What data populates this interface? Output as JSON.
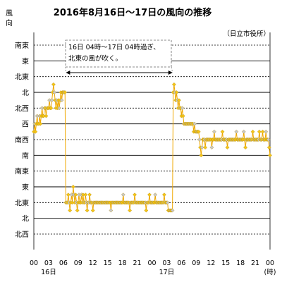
{
  "chart_data": {
    "type": "line",
    "title": "2016年8月16日～17日の風向の推移",
    "subtitle": "（日立市役所）",
    "ylabel": "風\n向",
    "y_categories": [
      "北西",
      "北",
      "北東",
      "東",
      "南東",
      "南",
      "南西",
      "西",
      "北西",
      "北",
      "北東",
      "東",
      "南東"
    ],
    "x_ticks": [
      "00",
      "03",
      "06",
      "09",
      "12",
      "15",
      "18",
      "21",
      "00",
      "03",
      "06",
      "09",
      "12",
      "15",
      "18",
      "21",
      "00"
    ],
    "x_unit": "(時)",
    "day_labels": [
      {
        "tick": "03",
        "label": "16日"
      },
      {
        "tick": "03",
        "label": "17日"
      }
    ],
    "xlim_hours": [
      0,
      48
    ],
    "annotation": {
      "line1": "16日 04時～17日 04時過ぎ、",
      "line2": "北東の風が吹く。"
    },
    "colors": {
      "line": "#f0a800",
      "marker": "#f5c518",
      "marker_edge": "#b08800",
      "marker_alt": "#c8c8c8"
    },
    "series": [
      {
        "points": [
          [
            0.0,
            6.5
          ],
          [
            0.17,
            7
          ],
          [
            0.33,
            6.5
          ],
          [
            0.5,
            7
          ],
          [
            0.67,
            7.5
          ],
          [
            0.83,
            7
          ],
          [
            1.0,
            7
          ],
          [
            1.17,
            7.5
          ],
          [
            1.33,
            7
          ],
          [
            1.5,
            7.5
          ],
          [
            1.67,
            8
          ],
          [
            1.83,
            7.5
          ],
          [
            2.0,
            7.5
          ],
          [
            2.17,
            8
          ],
          [
            2.33,
            8
          ],
          [
            2.5,
            7.5
          ],
          [
            2.67,
            8
          ],
          [
            2.83,
            8
          ],
          [
            3.0,
            8
          ],
          [
            3.17,
            8.5
          ],
          [
            3.33,
            8
          ],
          [
            3.5,
            8
          ],
          [
            3.67,
            8.5
          ],
          [
            3.83,
            9
          ],
          [
            4.0,
            9.5
          ],
          [
            4.17,
            9
          ],
          [
            4.33,
            8.5
          ],
          [
            4.5,
            8
          ],
          [
            4.67,
            8.5
          ],
          [
            4.83,
            8
          ],
          [
            5.0,
            8.5
          ],
          [
            5.17,
            8
          ],
          [
            5.33,
            8.5
          ],
          [
            5.5,
            9
          ],
          [
            5.67,
            8.5
          ],
          [
            5.83,
            9
          ],
          [
            6.0,
            9
          ],
          [
            6.17,
            9
          ],
          [
            6.33,
            9
          ],
          [
            6.5,
            2
          ],
          [
            6.67,
            2
          ],
          [
            6.83,
            2
          ],
          [
            7.0,
            2.5
          ],
          [
            7.17,
            2
          ],
          [
            7.33,
            1.5
          ],
          [
            7.5,
            2
          ],
          [
            7.67,
            2.5
          ],
          [
            7.83,
            2
          ],
          [
            8.0,
            3
          ],
          [
            8.17,
            2.5
          ],
          [
            8.33,
            2
          ],
          [
            8.5,
            2.5
          ],
          [
            8.67,
            2
          ],
          [
            8.83,
            1.5
          ],
          [
            9.0,
            2
          ],
          [
            9.17,
            2.5
          ],
          [
            9.33,
            2
          ],
          [
            9.5,
            2
          ],
          [
            9.67,
            2.5
          ],
          [
            9.83,
            2
          ],
          [
            10.0,
            2.5
          ],
          [
            10.17,
            2
          ],
          [
            10.33,
            2
          ],
          [
            10.5,
            2.5
          ],
          [
            10.67,
            2
          ],
          [
            10.83,
            1.5
          ],
          [
            11.0,
            2
          ],
          [
            11.17,
            2
          ],
          [
            11.33,
            2.5
          ],
          [
            11.5,
            2
          ],
          [
            11.67,
            2
          ],
          [
            11.83,
            2
          ],
          [
            12.0,
            1.5
          ],
          [
            12.17,
            2
          ],
          [
            12.33,
            2
          ],
          [
            12.5,
            2
          ],
          [
            12.67,
            2
          ],
          [
            12.83,
            2
          ],
          [
            13.0,
            2
          ],
          [
            13.17,
            2
          ],
          [
            13.33,
            2
          ],
          [
            13.5,
            2
          ],
          [
            13.67,
            2
          ],
          [
            13.83,
            2
          ],
          [
            14.0,
            2
          ],
          [
            14.17,
            2
          ],
          [
            14.33,
            2
          ],
          [
            14.5,
            2
          ],
          [
            14.67,
            2
          ],
          [
            14.83,
            2
          ],
          [
            15.0,
            2
          ],
          [
            15.17,
            2
          ],
          [
            15.33,
            2
          ],
          [
            15.5,
            2
          ],
          [
            15.67,
            1.5
          ],
          [
            15.83,
            2
          ],
          [
            16.0,
            2
          ],
          [
            16.17,
            2
          ],
          [
            16.33,
            2
          ],
          [
            16.5,
            2
          ],
          [
            16.67,
            2
          ],
          [
            16.83,
            2
          ],
          [
            17.0,
            2
          ],
          [
            17.17,
            2
          ],
          [
            17.33,
            2
          ],
          [
            17.5,
            2
          ],
          [
            17.67,
            2
          ],
          [
            17.83,
            2
          ],
          [
            18.0,
            2
          ],
          [
            18.17,
            2.5
          ],
          [
            18.33,
            2
          ],
          [
            18.5,
            2
          ],
          [
            18.67,
            2
          ],
          [
            18.83,
            2
          ],
          [
            19.0,
            2
          ],
          [
            19.17,
            2
          ],
          [
            19.33,
            2
          ],
          [
            19.5,
            1.5
          ],
          [
            19.67,
            2
          ],
          [
            19.83,
            2
          ],
          [
            20.0,
            2
          ],
          [
            20.17,
            2
          ],
          [
            20.33,
            2
          ],
          [
            20.5,
            2.5
          ],
          [
            20.67,
            2
          ],
          [
            20.83,
            2
          ],
          [
            21.0,
            2
          ],
          [
            21.17,
            2
          ],
          [
            21.33,
            2
          ],
          [
            21.5,
            2
          ],
          [
            21.67,
            2
          ],
          [
            21.83,
            2
          ],
          [
            22.0,
            2
          ],
          [
            22.17,
            2
          ],
          [
            22.33,
            2
          ],
          [
            22.5,
            2
          ],
          [
            22.67,
            2
          ],
          [
            22.83,
            1.5
          ],
          [
            23.0,
            2
          ],
          [
            23.17,
            2
          ],
          [
            23.33,
            2
          ],
          [
            23.5,
            2.5
          ],
          [
            23.67,
            2
          ],
          [
            23.83,
            2
          ],
          [
            24.0,
            2
          ],
          [
            24.17,
            2
          ],
          [
            24.33,
            2
          ],
          [
            24.5,
            2
          ],
          [
            24.67,
            2.5
          ],
          [
            24.83,
            2
          ],
          [
            25.0,
            2
          ],
          [
            25.17,
            2
          ],
          [
            25.33,
            2
          ],
          [
            25.5,
            2
          ],
          [
            25.67,
            2
          ],
          [
            25.83,
            2
          ],
          [
            26.0,
            2
          ],
          [
            26.17,
            2
          ],
          [
            26.33,
            2
          ],
          [
            26.5,
            2.5
          ],
          [
            26.67,
            2
          ],
          [
            26.83,
            2
          ],
          [
            27.0,
            2
          ],
          [
            27.17,
            2
          ],
          [
            27.33,
            1.5
          ],
          [
            27.5,
            1.5
          ],
          [
            27.67,
            1.5
          ],
          [
            27.83,
            1.5
          ],
          [
            28.0,
            1.5
          ],
          [
            28.17,
            1.5
          ],
          [
            28.33,
            9
          ],
          [
            28.5,
            9.5
          ],
          [
            28.67,
            9
          ],
          [
            28.83,
            8.5
          ],
          [
            29.0,
            9
          ],
          [
            29.17,
            8.5
          ],
          [
            29.33,
            8
          ],
          [
            29.5,
            8.5
          ],
          [
            29.67,
            8
          ],
          [
            29.83,
            8
          ],
          [
            30.0,
            7.5
          ],
          [
            30.17,
            8
          ],
          [
            30.33,
            7.5
          ],
          [
            30.5,
            7
          ],
          [
            30.67,
            7
          ],
          [
            30.83,
            7
          ],
          [
            31.0,
            7
          ],
          [
            31.17,
            7
          ],
          [
            31.33,
            7
          ],
          [
            31.5,
            7
          ],
          [
            31.67,
            7
          ],
          [
            31.83,
            7
          ],
          [
            32.0,
            7
          ],
          [
            32.17,
            7
          ],
          [
            32.33,
            7
          ],
          [
            32.5,
            6.5
          ],
          [
            32.67,
            7
          ],
          [
            32.83,
            6.5
          ],
          [
            33.0,
            6.5
          ],
          [
            33.17,
            6.5
          ],
          [
            33.33,
            6.5
          ],
          [
            33.5,
            6.5
          ],
          [
            33.67,
            6
          ],
          [
            33.83,
            5.5
          ],
          [
            34.0,
            5
          ],
          [
            34.17,
            5.5
          ],
          [
            34.33,
            6
          ],
          [
            34.5,
            6
          ],
          [
            34.67,
            6
          ],
          [
            34.83,
            5.5
          ],
          [
            35.0,
            6
          ],
          [
            35.17,
            6
          ],
          [
            35.33,
            6
          ],
          [
            35.5,
            6
          ],
          [
            35.67,
            6
          ],
          [
            35.83,
            6
          ],
          [
            36.0,
            6
          ],
          [
            36.17,
            5.5
          ],
          [
            36.33,
            6
          ],
          [
            36.5,
            6
          ],
          [
            36.67,
            6.5
          ],
          [
            36.83,
            6
          ],
          [
            37.0,
            6
          ],
          [
            37.17,
            6
          ],
          [
            37.33,
            6
          ],
          [
            37.5,
            6
          ],
          [
            37.67,
            6
          ],
          [
            37.83,
            6
          ],
          [
            38.0,
            6
          ],
          [
            38.17,
            6
          ],
          [
            38.33,
            6.5
          ],
          [
            38.5,
            6
          ],
          [
            38.67,
            6
          ],
          [
            38.83,
            6
          ],
          [
            39.0,
            6
          ],
          [
            39.17,
            6
          ],
          [
            39.33,
            5.5
          ],
          [
            39.5,
            6
          ],
          [
            39.67,
            6
          ],
          [
            39.83,
            6
          ],
          [
            40.0,
            6
          ],
          [
            40.17,
            6
          ],
          [
            40.33,
            6
          ],
          [
            40.5,
            6
          ],
          [
            40.67,
            6
          ],
          [
            40.83,
            6
          ],
          [
            41.0,
            6
          ],
          [
            41.17,
            6.5
          ],
          [
            41.33,
            6
          ],
          [
            41.5,
            6
          ],
          [
            41.67,
            6
          ],
          [
            41.83,
            6
          ],
          [
            42.0,
            6
          ],
          [
            42.17,
            6
          ],
          [
            42.33,
            6
          ],
          [
            42.5,
            6
          ],
          [
            42.67,
            6.5
          ],
          [
            42.83,
            6
          ],
          [
            43.0,
            5.5
          ],
          [
            43.17,
            6
          ],
          [
            43.33,
            6
          ],
          [
            43.5,
            6
          ],
          [
            43.67,
            6
          ],
          [
            43.83,
            6
          ],
          [
            44.0,
            6
          ],
          [
            44.17,
            6
          ],
          [
            44.33,
            6
          ],
          [
            44.5,
            6.5
          ],
          [
            44.67,
            6
          ],
          [
            44.83,
            6
          ],
          [
            45.0,
            6
          ],
          [
            45.17,
            6
          ],
          [
            45.33,
            6
          ],
          [
            45.5,
            6
          ],
          [
            45.67,
            6
          ],
          [
            45.83,
            6.5
          ],
          [
            46.0,
            6
          ],
          [
            46.17,
            6
          ],
          [
            46.33,
            6
          ],
          [
            46.5,
            6.5
          ],
          [
            46.67,
            6
          ],
          [
            46.83,
            6
          ],
          [
            47.0,
            6
          ],
          [
            47.17,
            6.5
          ],
          [
            47.33,
            6
          ],
          [
            47.5,
            6
          ],
          [
            47.67,
            6
          ],
          [
            47.83,
            5.5
          ],
          [
            48.0,
            5
          ]
        ]
      }
    ]
  }
}
